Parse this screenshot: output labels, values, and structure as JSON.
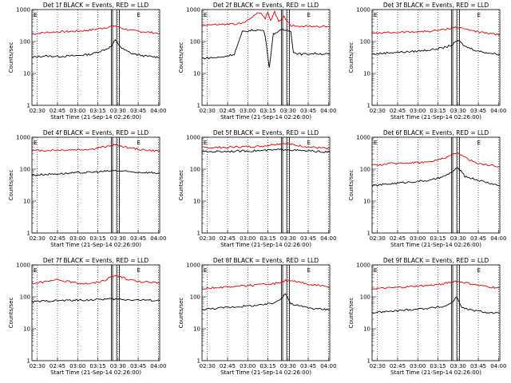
{
  "chart_data": [
    {
      "type": "line",
      "title": "Det 1f BLACK = Events, RED = LLD",
      "xlabel": "Start Time (21-Sep-14 02:26:00)",
      "ylabel": "Counts/sec",
      "yscale": "log",
      "ylim": [
        1,
        1000
      ],
      "xticks": [
        "02:30",
        "02:45",
        "03:00",
        "03:15",
        "03:30",
        "03:45",
        "04:00"
      ],
      "yticks": [
        "1",
        "10",
        "100",
        "1000"
      ],
      "marker_lines": [
        "03:25",
        "03:26",
        "03:29",
        "03:31"
      ],
      "marker_labels": [
        {
          "at": "02:26",
          "text": "E"
        },
        {
          "at": "03:43",
          "text": "E"
        }
      ],
      "series": [
        {
          "color": "#e00000",
          "x": [
            "02:26",
            "02:35",
            "02:45",
            "03:00",
            "03:10",
            "03:20",
            "03:28",
            "03:33",
            "03:40",
            "03:50",
            "04:01"
          ],
          "y": [
            170,
            190,
            200,
            210,
            230,
            270,
            310,
            260,
            220,
            200,
            180
          ]
        },
        {
          "color": "#000000",
          "x": [
            "02:26",
            "02:35",
            "02:45",
            "03:00",
            "03:10",
            "03:20",
            "03:25",
            "03:28",
            "03:33",
            "03:40",
            "03:50",
            "04:01"
          ],
          "y": [
            32,
            35,
            34,
            36,
            40,
            55,
            70,
            110,
            60,
            42,
            35,
            32
          ]
        }
      ]
    },
    {
      "type": "line",
      "title": "Det 2f BLACK = Events, RED = LLD",
      "xlabel": "Start Time (21-Sep-14 02:26:00)",
      "ylabel": "Counts/sec",
      "yscale": "log",
      "ylim": [
        1,
        1000
      ],
      "xticks": [
        "02:30",
        "02:45",
        "03:00",
        "03:15",
        "03:30",
        "03:45",
        "04:00"
      ],
      "yticks": [
        "1",
        "10",
        "100",
        "1000"
      ],
      "marker_lines": [
        "03:25",
        "03:26",
        "03:29",
        "03:31"
      ],
      "marker_labels": [
        {
          "at": "02:26",
          "text": "E"
        },
        {
          "at": "03:43",
          "text": "E"
        }
      ],
      "series": [
        {
          "color": "#e00000",
          "x": [
            "02:26",
            "02:40",
            "02:55",
            "03:00",
            "03:05",
            "03:10",
            "03:13",
            "03:15",
            "03:17",
            "03:20",
            "03:23",
            "03:27",
            "03:32",
            "03:40",
            "03:50",
            "04:01"
          ],
          "y": [
            330,
            340,
            360,
            450,
            700,
            800,
            500,
            850,
            450,
            900,
            400,
            600,
            320,
            300,
            300,
            290
          ]
        },
        {
          "color": "#000000",
          "x": [
            "02:26",
            "02:40",
            "02:50",
            "02:53",
            "02:56",
            "03:05",
            "03:12",
            "03:14",
            "03:16",
            "03:19",
            "03:22",
            "03:26",
            "03:32",
            "03:34",
            "03:40",
            "03:50",
            "04:01"
          ],
          "y": [
            30,
            32,
            40,
            90,
            200,
            230,
            220,
            80,
            15,
            170,
            200,
            230,
            220,
            45,
            40,
            42,
            40
          ]
        }
      ]
    },
    {
      "type": "line",
      "title": "Det 3f BLACK = Events, RED = LLD",
      "xlabel": "Start Time (21-Sep-14 02:26:00)",
      "ylabel": "Counts/sec",
      "yscale": "log",
      "ylim": [
        1,
        1000
      ],
      "xticks": [
        "02:30",
        "02:45",
        "03:00",
        "03:15",
        "03:30",
        "03:45",
        "04:00"
      ],
      "yticks": [
        "1",
        "10",
        "100",
        "1000"
      ],
      "marker_lines": [
        "03:25",
        "03:26",
        "03:29",
        "03:31"
      ],
      "marker_labels": [
        {
          "at": "02:26",
          "text": "E"
        },
        {
          "at": "03:43",
          "text": "E"
        }
      ],
      "series": [
        {
          "color": "#e00000",
          "x": [
            "02:26",
            "02:40",
            "02:55",
            "03:10",
            "03:20",
            "03:28",
            "03:35",
            "03:45",
            "03:55",
            "04:01"
          ],
          "y": [
            180,
            190,
            200,
            210,
            240,
            280,
            250,
            200,
            170,
            170
          ]
        },
        {
          "color": "#000000",
          "x": [
            "02:26",
            "02:40",
            "02:55",
            "03:10",
            "03:20",
            "03:26",
            "03:30",
            "03:35",
            "03:45",
            "03:55",
            "04:01"
          ],
          "y": [
            40,
            45,
            48,
            55,
            65,
            80,
            110,
            70,
            50,
            42,
            40
          ]
        }
      ]
    },
    {
      "type": "line",
      "title": "Det 4f BLACK = Events, RED = LLD",
      "xlabel": "Start Time (21-Sep-14 02:26:00)",
      "ylabel": "Counts/sec",
      "yscale": "log",
      "ylim": [
        1,
        1000
      ],
      "xticks": [
        "02:30",
        "02:45",
        "03:00",
        "03:15",
        "03:30",
        "03:45",
        "04:00"
      ],
      "yticks": [
        "1",
        "10",
        "100",
        "1000"
      ],
      "marker_lines": [
        "03:25",
        "03:26",
        "03:29",
        "03:31"
      ],
      "marker_labels": [
        {
          "at": "02:26",
          "text": "E"
        },
        {
          "at": "03:43",
          "text": "E"
        }
      ],
      "series": [
        {
          "color": "#e00000",
          "x": [
            "02:26",
            "02:40",
            "02:55",
            "03:10",
            "03:20",
            "03:28",
            "03:35",
            "03:45",
            "03:55",
            "04:01"
          ],
          "y": [
            380,
            390,
            400,
            420,
            500,
            580,
            500,
            420,
            380,
            370
          ]
        },
        {
          "color": "#000000",
          "x": [
            "02:26",
            "02:40",
            "02:55",
            "03:10",
            "03:20",
            "03:28",
            "03:35",
            "03:45",
            "03:55",
            "04:01"
          ],
          "y": [
            65,
            70,
            75,
            80,
            85,
            90,
            85,
            80,
            78,
            75
          ]
        }
      ]
    },
    {
      "type": "line",
      "title": "Det 5f BLACK = Events, RED = LLD",
      "xlabel": "Start Time (21-Sep-14 02:26:00)",
      "ylabel": "Counts/sec",
      "yscale": "log",
      "ylim": [
        1,
        1000
      ],
      "xticks": [
        "02:30",
        "02:45",
        "03:00",
        "03:15",
        "03:30",
        "03:45",
        "04:00"
      ],
      "yticks": [
        "1",
        "10",
        "100",
        "1000"
      ],
      "marker_lines": [
        "03:25",
        "03:26",
        "03:29",
        "03:31"
      ],
      "marker_labels": [
        {
          "at": "02:26",
          "text": "E"
        },
        {
          "at": "03:43",
          "text": "E"
        }
      ],
      "series": [
        {
          "color": "#e00000",
          "x": [
            "02:26",
            "02:40",
            "02:55",
            "03:10",
            "03:20",
            "03:28",
            "03:35",
            "03:45",
            "03:55",
            "04:01"
          ],
          "y": [
            470,
            480,
            500,
            520,
            600,
            650,
            560,
            500,
            460,
            450
          ]
        },
        {
          "color": "#000000",
          "x": [
            "02:26",
            "02:40",
            "02:55",
            "03:10",
            "03:20",
            "03:28",
            "03:35",
            "03:45",
            "03:55",
            "04:01"
          ],
          "y": [
            350,
            360,
            370,
            380,
            400,
            420,
            390,
            370,
            350,
            340
          ]
        }
      ]
    },
    {
      "type": "line",
      "title": "Det 6f BLACK = Events, RED = LLD",
      "xlabel": "Start Time (21-Sep-14 02:26:00)",
      "ylabel": "Counts/sec",
      "yscale": "log",
      "ylim": [
        1,
        1000
      ],
      "xticks": [
        "02:30",
        "02:45",
        "03:00",
        "03:15",
        "03:30",
        "03:45",
        "04:00"
      ],
      "yticks": [
        "1",
        "10",
        "100",
        "1000"
      ],
      "marker_lines": [
        "03:25",
        "03:26",
        "03:29",
        "03:31"
      ],
      "marker_labels": [
        {
          "at": "02:26",
          "text": "E"
        },
        {
          "at": "03:43",
          "text": "E"
        }
      ],
      "series": [
        {
          "color": "#e00000",
          "x": [
            "02:26",
            "02:40",
            "02:55",
            "03:10",
            "03:20",
            "03:30",
            "03:38",
            "03:45",
            "03:55",
            "04:01"
          ],
          "y": [
            130,
            150,
            160,
            170,
            230,
            320,
            200,
            150,
            130,
            120
          ]
        },
        {
          "color": "#000000",
          "x": [
            "02:26",
            "02:40",
            "02:55",
            "03:10",
            "03:20",
            "03:27",
            "03:30",
            "03:35",
            "03:45",
            "03:55",
            "04:01"
          ],
          "y": [
            30,
            35,
            40,
            45,
            60,
            90,
            110,
            60,
            45,
            35,
            30
          ]
        }
      ]
    },
    {
      "type": "line",
      "title": "Det 7f BLACK = Events, RED = LLD",
      "xlabel": "Start Time (21-Sep-14 02:26:00)",
      "ylabel": "Counts/sec",
      "yscale": "log",
      "ylim": [
        1,
        1000
      ],
      "xticks": [
        "02:30",
        "02:45",
        "03:00",
        "03:15",
        "03:30",
        "03:45",
        "04:00"
      ],
      "yticks": [
        "1",
        "10",
        "100",
        "1000"
      ],
      "marker_lines": [
        "03:25",
        "03:26",
        "03:29",
        "03:31"
      ],
      "marker_labels": [
        {
          "at": "02:26",
          "text": "E"
        },
        {
          "at": "03:43",
          "text": "E"
        }
      ],
      "series": [
        {
          "color": "#e00000",
          "x": [
            "02:26",
            "02:35",
            "02:45",
            "03:00",
            "03:10",
            "03:20",
            "03:28",
            "03:35",
            "03:45",
            "03:55",
            "04:01"
          ],
          "y": [
            270,
            290,
            340,
            270,
            260,
            330,
            470,
            380,
            300,
            280,
            270
          ]
        },
        {
          "color": "#000000",
          "x": [
            "02:26",
            "02:40",
            "02:55",
            "03:10",
            "03:20",
            "03:28",
            "03:35",
            "03:45",
            "03:55",
            "04:01"
          ],
          "y": [
            70,
            75,
            78,
            80,
            85,
            85,
            82,
            80,
            78,
            75
          ]
        }
      ]
    },
    {
      "type": "line",
      "title": "Det 8f BLACK = Events, RED = LLD",
      "xlabel": "Start Time (21-Sep-14 02:26:00)",
      "ylabel": "Counts/sec",
      "yscale": "log",
      "ylim": [
        1,
        1000
      ],
      "xticks": [
        "02:30",
        "02:45",
        "03:00",
        "03:15",
        "03:30",
        "03:45",
        "04:00"
      ],
      "yticks": [
        "1",
        "10",
        "100",
        "1000"
      ],
      "marker_lines": [
        "03:25",
        "03:26",
        "03:29",
        "03:31"
      ],
      "marker_labels": [
        {
          "at": "02:26",
          "text": "E"
        },
        {
          "at": "03:43",
          "text": "E"
        }
      ],
      "series": [
        {
          "color": "#e00000",
          "x": [
            "02:26",
            "02:40",
            "02:55",
            "03:10",
            "03:20",
            "03:28",
            "03:35",
            "03:45",
            "03:55",
            "04:01"
          ],
          "y": [
            180,
            200,
            220,
            240,
            260,
            320,
            300,
            250,
            220,
            200
          ]
        },
        {
          "color": "#000000",
          "x": [
            "02:26",
            "02:40",
            "02:55",
            "03:10",
            "03:20",
            "03:26",
            "03:28",
            "03:32",
            "03:40",
            "03:50",
            "04:01"
          ],
          "y": [
            40,
            45,
            50,
            55,
            65,
            100,
            130,
            60,
            50,
            42,
            40
          ]
        }
      ]
    },
    {
      "type": "line",
      "title": "Det 9f BLACK = Events, RED = LLD",
      "xlabel": "Start Time (21-Sep-14 02:26:00)",
      "ylabel": "Counts/sec",
      "yscale": "log",
      "ylim": [
        1,
        1000
      ],
      "xticks": [
        "02:30",
        "02:45",
        "03:00",
        "03:15",
        "03:30",
        "03:45",
        "04:00"
      ],
      "yticks": [
        "1",
        "10",
        "100",
        "1000"
      ],
      "marker_lines": [
        "03:25",
        "03:26",
        "03:29",
        "03:31"
      ],
      "marker_labels": [
        {
          "at": "02:26",
          "text": "E"
        },
        {
          "at": "03:43",
          "text": "E"
        }
      ],
      "series": [
        {
          "color": "#e00000",
          "x": [
            "02:26",
            "02:40",
            "02:55",
            "03:10",
            "03:20",
            "03:28",
            "03:35",
            "03:45",
            "03:55",
            "04:01"
          ],
          "y": [
            180,
            190,
            210,
            230,
            260,
            310,
            280,
            230,
            200,
            190
          ]
        },
        {
          "color": "#000000",
          "x": [
            "02:26",
            "02:40",
            "02:55",
            "03:10",
            "03:20",
            "03:26",
            "03:29",
            "03:33",
            "03:40",
            "03:50",
            "04:01"
          ],
          "y": [
            32,
            35,
            40,
            45,
            50,
            70,
            100,
            45,
            38,
            33,
            30
          ]
        }
      ]
    }
  ]
}
